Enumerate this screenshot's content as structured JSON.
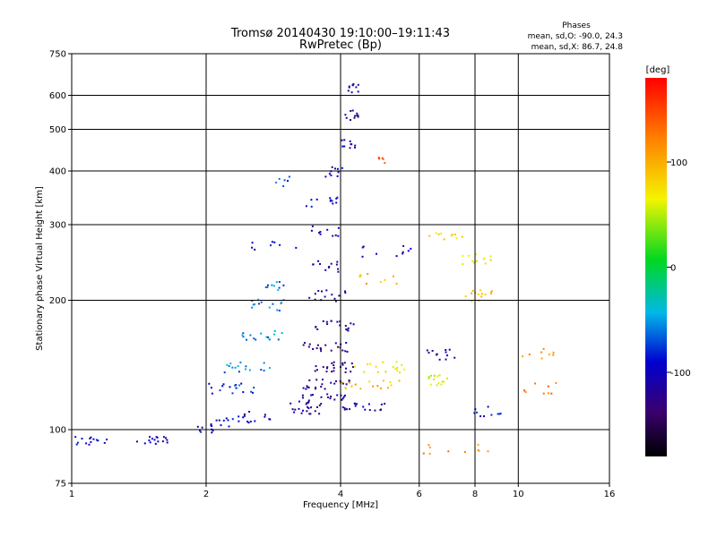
{
  "chart_data": {
    "type": "scatter",
    "title": "Tromsø 20140430 19:10:00–19:11:43",
    "subtitle": "RwPretec (Bp)",
    "xlabel": "Frequency [MHz]",
    "ylabel": "Stationary phase Virtual Height [km]",
    "x_scale": "log",
    "y_scale": "log",
    "xlim": [
      1,
      16
    ],
    "ylim": [
      75,
      750
    ],
    "x_ticks": [
      1,
      2,
      4,
      6,
      8,
      10,
      16
    ],
    "x_tick_labels": [
      "1",
      "2",
      "4",
      "6",
      "8",
      "10",
      "16"
    ],
    "y_ticks": [
      75,
      100,
      200,
      300,
      400,
      500,
      600,
      750
    ],
    "y_tick_labels": [
      "75",
      "100",
      "200",
      "300",
      "400",
      "500",
      "600",
      "750"
    ],
    "grid": true,
    "phase_box": {
      "title": "Phases",
      "line_o": "mean, sd,O: -90.0, 24.3",
      "line_x": "mean, sd,X: 86.7, 24.8"
    },
    "colorbar": {
      "label": "[deg]",
      "range": [
        -180,
        180
      ],
      "ticks": [
        100,
        0,
        -100
      ],
      "tick_labels": [
        "100",
        "0",
        "-100"
      ]
    },
    "point_groups": [
      {
        "x": [
          1.0,
          1.12
        ],
        "h": 94,
        "phase": -95,
        "density": 10
      },
      {
        "x": [
          1.12,
          1.2
        ],
        "h": 95,
        "phase": -95,
        "density": 4
      },
      {
        "x": [
          1.4,
          1.65
        ],
        "h": 95,
        "phase": -100,
        "density": 16
      },
      {
        "x": [
          1.9,
          2.1
        ],
        "h": 99,
        "phase": -90,
        "density": 8
      },
      {
        "x": [
          2.05,
          2.35
        ],
        "h": 104,
        "phase": -100,
        "density": 10
      },
      {
        "x": [
          2.3,
          2.9
        ],
        "h": 107,
        "phase": -105,
        "density": 14
      },
      {
        "x": [
          2.9,
          3.6
        ],
        "h": 112,
        "phase": -115,
        "density": 18
      },
      {
        "x": [
          3.2,
          4.1
        ],
        "h": 118,
        "phase": -120,
        "density": 22
      },
      {
        "x": [
          3.3,
          4.2
        ],
        "h": 128,
        "phase": -120,
        "density": 22
      },
      {
        "x": [
          3.5,
          4.3
        ],
        "h": 140,
        "phase": -125,
        "density": 22
      },
      {
        "x": [
          3.3,
          4.2
        ],
        "h": 155,
        "phase": -125,
        "density": 20
      },
      {
        "x": [
          3.5,
          4.3
        ],
        "h": 175,
        "phase": -120,
        "density": 18
      },
      {
        "x": [
          3.4,
          4.1
        ],
        "h": 205,
        "phase": -115,
        "density": 14
      },
      {
        "x": [
          3.4,
          4.0
        ],
        "h": 240,
        "phase": -115,
        "density": 12
      },
      {
        "x": [
          3.4,
          4.0
        ],
        "h": 290,
        "phase": -110,
        "density": 10
      },
      {
        "x": [
          3.3,
          4.0
        ],
        "h": 340,
        "phase": -100,
        "density": 12
      },
      {
        "x": [
          3.7,
          4.2
        ],
        "h": 400,
        "phase": -100,
        "density": 10
      },
      {
        "x": [
          2.0,
          2.6
        ],
        "h": 125,
        "phase": -75,
        "density": 18
      },
      {
        "x": [
          2.2,
          2.9
        ],
        "h": 140,
        "phase": -55,
        "density": 16
      },
      {
        "x": [
          2.4,
          3.0
        ],
        "h": 165,
        "phase": -55,
        "density": 16
      },
      {
        "x": [
          2.5,
          3.0
        ],
        "h": 195,
        "phase": -55,
        "density": 14
      },
      {
        "x": [
          2.6,
          3.0
        ],
        "h": 215,
        "phase": -60,
        "density": 10
      },
      {
        "x": [
          2.5,
          3.2
        ],
        "h": 270,
        "phase": -95,
        "density": 8
      },
      {
        "x": [
          2.8,
          3.1
        ],
        "h": 380,
        "phase": -70,
        "density": 6
      },
      {
        "x": [
          4.0,
          4.4
        ],
        "h": 460,
        "phase": -110,
        "density": 10
      },
      {
        "x": [
          4.1,
          4.4
        ],
        "h": 540,
        "phase": -115,
        "density": 12
      },
      {
        "x": [
          4.1,
          4.4
        ],
        "h": 620,
        "phase": -115,
        "density": 10
      },
      {
        "x": [
          4.0,
          5.2
        ],
        "h": 112,
        "phase": -110,
        "density": 18
      },
      {
        "x": [
          4.0,
          5.5
        ],
        "h": 128,
        "phase": 95,
        "density": 16
      },
      {
        "x": [
          4.3,
          5.6
        ],
        "h": 140,
        "phase": 70,
        "density": 16
      },
      {
        "x": [
          4.4,
          5.4
        ],
        "h": 225,
        "phase": 100,
        "density": 10
      },
      {
        "x": [
          4.8,
          5.2
        ],
        "h": 430,
        "phase": 150,
        "density": 5
      },
      {
        "x": [
          4.3,
          5.8
        ],
        "h": 260,
        "phase": -110,
        "density": 10
      },
      {
        "x": [
          6.2,
          7.2
        ],
        "h": 130,
        "phase": 60,
        "density": 14
      },
      {
        "x": [
          6.2,
          7.2
        ],
        "h": 150,
        "phase": -110,
        "density": 12
      },
      {
        "x": [
          6.3,
          7.5
        ],
        "h": 280,
        "phase": 80,
        "density": 10
      },
      {
        "x": [
          7.5,
          9.0
        ],
        "h": 205,
        "phase": 90,
        "density": 14
      },
      {
        "x": [
          7.5,
          9.0
        ],
        "h": 250,
        "phase": 70,
        "density": 14
      },
      {
        "x": [
          7.8,
          9.2
        ],
        "h": 110,
        "phase": -90,
        "density": 10
      },
      {
        "x": [
          6.0,
          9.0
        ],
        "h": 90,
        "phase": 120,
        "density": 10
      },
      {
        "x": [
          10.0,
          12.5
        ],
        "h": 125,
        "phase": 130,
        "density": 8
      },
      {
        "x": [
          10.0,
          12.0
        ],
        "h": 150,
        "phase": 110,
        "density": 8
      }
    ]
  }
}
